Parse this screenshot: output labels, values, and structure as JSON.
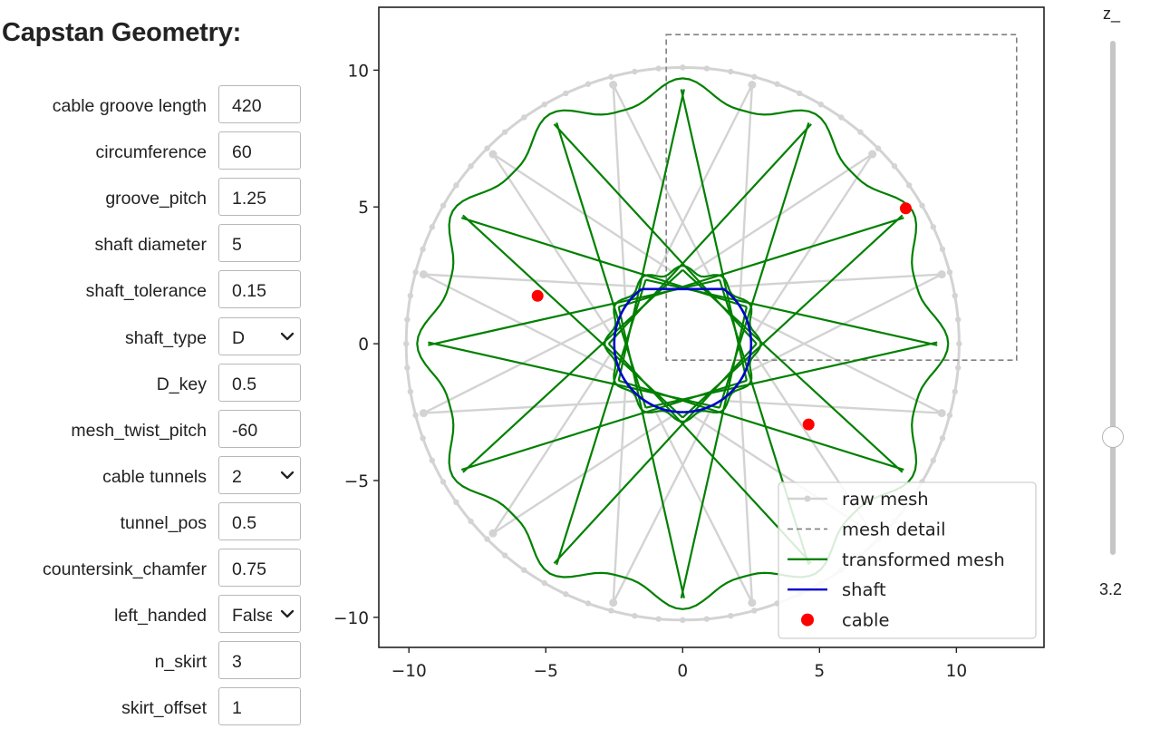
{
  "title": "Capstan Geometry:",
  "params": [
    {
      "label": "cable groove length",
      "value": "420",
      "type": "text"
    },
    {
      "label": "circumference",
      "value": "60",
      "type": "text"
    },
    {
      "label": "groove_pitch",
      "value": "1.25",
      "type": "text"
    },
    {
      "label": "shaft diameter",
      "value": "5",
      "type": "text"
    },
    {
      "label": "shaft_tolerance",
      "value": "0.15",
      "type": "text"
    },
    {
      "label": "shaft_type",
      "value": "D",
      "type": "select"
    },
    {
      "label": "D_key",
      "value": "0.5",
      "type": "text"
    },
    {
      "label": "mesh_twist_pitch",
      "value": "-60",
      "type": "text"
    },
    {
      "label": "cable tunnels",
      "value": "2",
      "type": "select"
    },
    {
      "label": "tunnel_pos",
      "value": "0.5",
      "type": "text"
    },
    {
      "label": "countersink_chamfer",
      "value": "0.75",
      "type": "text"
    },
    {
      "label": "left_handed",
      "value": "False",
      "type": "select"
    },
    {
      "label": "n_skirt",
      "value": "3",
      "type": "text"
    },
    {
      "label": "skirt_offset",
      "value": "1",
      "type": "text"
    }
  ],
  "slider": {
    "label": "z_",
    "value": "3.2",
    "fraction": 0.77
  },
  "chart_data": {
    "type": "line",
    "xlim": [
      -11.1,
      13.2
    ],
    "ylim": [
      -11.1,
      12.3
    ],
    "xticks": [
      -10,
      -5,
      0,
      5,
      10
    ],
    "yticks": [
      -10,
      -5,
      0,
      5,
      10
    ],
    "xtick_labels": [
      "−10",
      "−5",
      "0",
      "5",
      "10"
    ],
    "ytick_labels": [
      "−10",
      "−5",
      "0",
      "5",
      "10"
    ],
    "grid": false,
    "legend_position": "lower-right",
    "colors": {
      "raw": "#d3d3d3",
      "detail": "#808080",
      "transformed": "#008000",
      "shaft": "#0000cc",
      "cable": "#ff0000"
    },
    "series": [
      {
        "name": "raw mesh",
        "style": "light-gray line with markers",
        "outer_radius": 10.1,
        "inner_radius": 2.7,
        "spokes": 12
      },
      {
        "name": "mesh detail",
        "style": "dashed gray rectangle",
        "x": [
          -0.6,
          12.2
        ],
        "y": [
          -0.6,
          11.3
        ]
      },
      {
        "name": "transformed mesh",
        "style": "green line",
        "outer_radius": 8.8,
        "inner_radius": 2.7,
        "spokes": 12
      },
      {
        "name": "shaft",
        "style": "blue line",
        "radius": 2.5,
        "d_flat_y": 2.0
      },
      {
        "name": "cable",
        "style": "red points",
        "x": [
          8.15,
          -5.3,
          4.6
        ],
        "y": [
          4.95,
          1.75,
          -2.95
        ]
      }
    ]
  }
}
